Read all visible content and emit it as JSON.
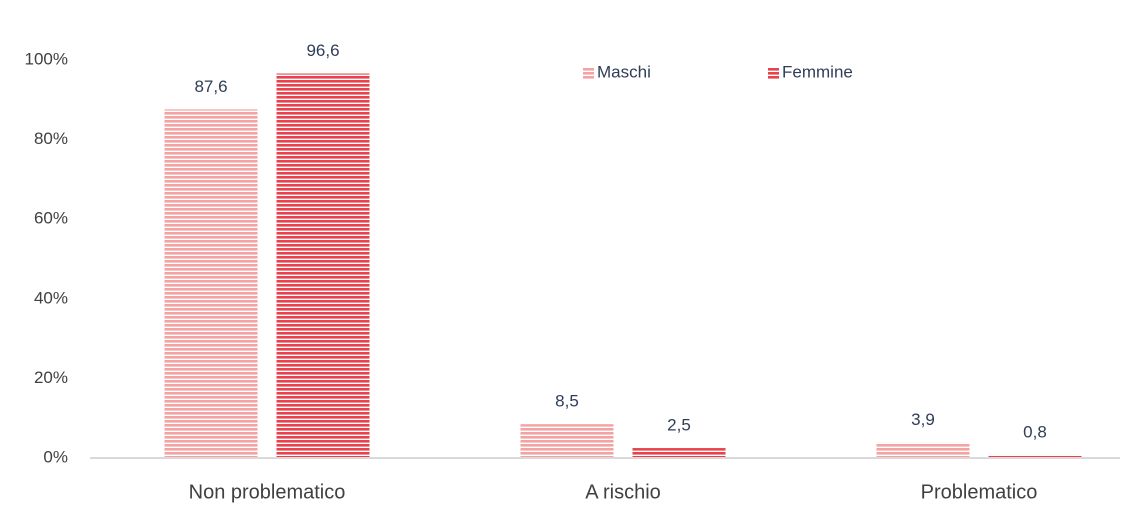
{
  "chart_data": {
    "type": "bar",
    "categories": [
      "Non problematico",
      "A rischio",
      "Problematico"
    ],
    "series": [
      {
        "name": "Maschi",
        "color": "#f4a3a3",
        "values": [
          87.6,
          8.5,
          3.9
        ],
        "value_labels": [
          "87,6",
          "8,5",
          "3,9"
        ]
      },
      {
        "name": "Femmine",
        "color": "#e8434c",
        "values": [
          96.6,
          2.5,
          0.8
        ],
        "value_labels": [
          "96,6",
          "2,5",
          "0,8"
        ]
      }
    ],
    "ylim": [
      0,
      100
    ],
    "yticks": [
      {
        "value": 0,
        "label": "0%"
      },
      {
        "value": 20,
        "label": "20%"
      },
      {
        "value": 40,
        "label": "40%"
      },
      {
        "value": 60,
        "label": "60%"
      },
      {
        "value": 80,
        "label": "80%"
      },
      {
        "value": 100,
        "label": "100%"
      }
    ],
    "grid": false,
    "legend": "top"
  }
}
